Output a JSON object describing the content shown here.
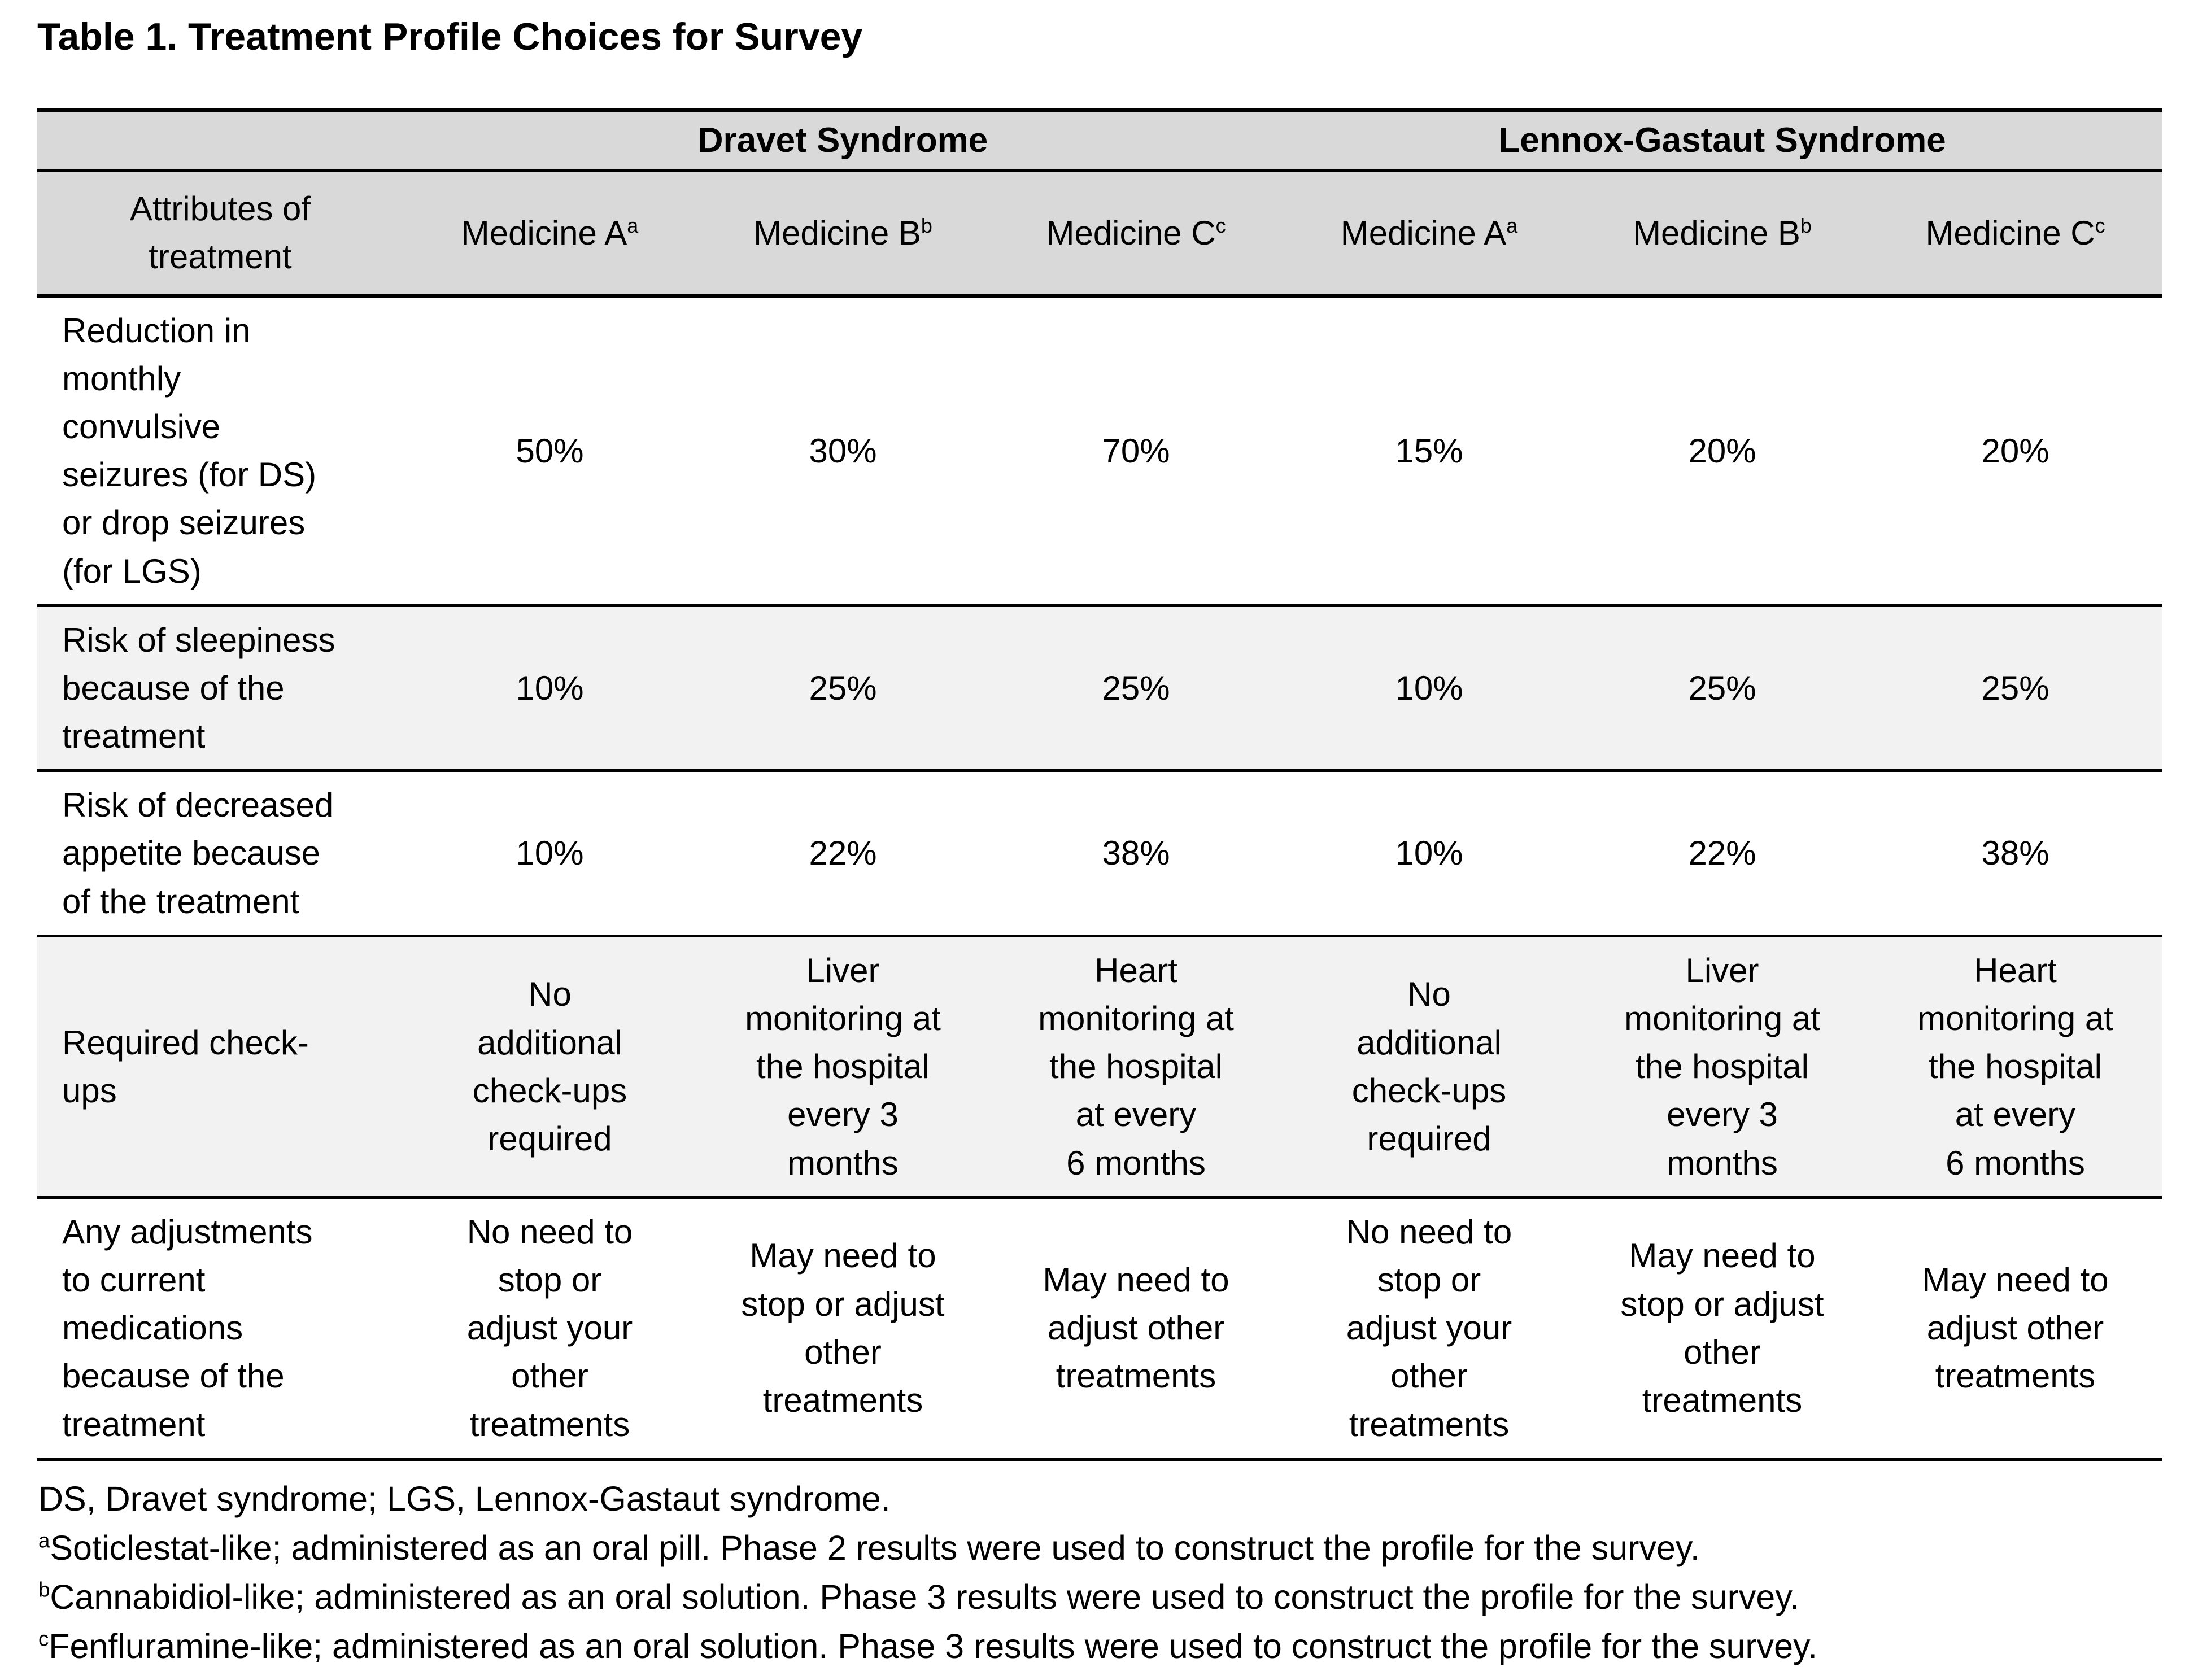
{
  "title": "Table 1. Treatment Profile Choices for Survey",
  "table": {
    "colors": {
      "header_bg": "#d9d9d9",
      "stripe_bg": "#f2f2f2",
      "border": "#000000"
    },
    "group_headers": [
      {
        "label": "Dravet Syndrome"
      },
      {
        "label": "Lennox-Gastaut Syndrome"
      }
    ],
    "attribute_header": "Attributes of\ntreatment",
    "column_headers": [
      {
        "name": "Medicine A",
        "sup": "a"
      },
      {
        "name": "Medicine B",
        "sup": "b"
      },
      {
        "name": "Medicine C",
        "sup": "c"
      },
      {
        "name": "Medicine A",
        "sup": "a"
      },
      {
        "name": "Medicine B",
        "sup": "b"
      },
      {
        "name": "Medicine C",
        "sup": "c"
      }
    ],
    "rows": [
      {
        "attribute": "Reduction in\nmonthly\nconvulsive\nseizures (for DS)\nor drop seizures\n(for LGS)",
        "values": [
          "50%",
          "30%",
          "70%",
          "15%",
          "20%",
          "20%"
        ]
      },
      {
        "attribute": "Risk of sleepiness\nbecause of the\ntreatment",
        "values": [
          "10%",
          "25%",
          "25%",
          "10%",
          "25%",
          "25%"
        ]
      },
      {
        "attribute": "Risk of decreased\nappetite because\nof the treatment",
        "values": [
          "10%",
          "22%",
          "38%",
          "10%",
          "22%",
          "38%"
        ]
      },
      {
        "attribute": "Required check-\nups",
        "values": [
          "No\nadditional\ncheck-ups\nrequired",
          "Liver\nmonitoring at\nthe hospital\nevery 3\nmonths",
          "Heart\nmonitoring at\nthe hospital\nat every\n6 months",
          "No\nadditional\ncheck-ups\nrequired",
          "Liver\nmonitoring at\nthe hospital\nevery 3\nmonths",
          "Heart\nmonitoring at\nthe hospital\nat every\n6 months"
        ]
      },
      {
        "attribute": "Any adjustments\nto current\nmedications\nbecause of the\ntreatment",
        "values": [
          "No need to\nstop or\nadjust your\nother\ntreatments",
          "May need to\nstop or adjust\nother\ntreatments",
          "May need to\nadjust other\ntreatments",
          "No need to\nstop or\nadjust your\nother\ntreatments",
          "May need to\nstop or adjust\nother\ntreatments",
          "May need to\nadjust other\ntreatments"
        ]
      }
    ],
    "footnotes": [
      {
        "sup": "",
        "text": "DS, Dravet syndrome; LGS, Lennox-Gastaut syndrome."
      },
      {
        "sup": "a",
        "text": "Soticlestat-like; administered as an oral pill. Phase 2 results were used to construct the profile for the survey."
      },
      {
        "sup": "b",
        "text": "Cannabidiol-like; administered as an oral solution. Phase 3 results were used to construct the profile for the survey."
      },
      {
        "sup": "c",
        "text": "Fenfluramine-like; administered as an oral solution. Phase 3 results were used to construct the profile for the survey."
      }
    ]
  }
}
